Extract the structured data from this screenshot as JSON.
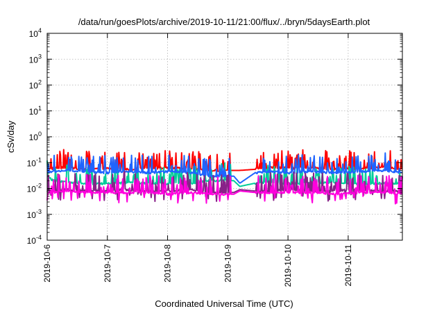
{
  "chart_data": {
    "type": "line",
    "title": "/data/run/goesPlots/archive/2019-10-11/21:00/flux/../bryn/5daysEarth.plot",
    "xlabel": "Coordinated Universal Time (UTC)",
    "ylabel": "cSv/day",
    "yscale": "log",
    "ylim": [
      0.0001,
      10000
    ],
    "xlim": [
      0,
      5.9
    ],
    "grid": true,
    "legend": "none",
    "x_tick_labels": [
      "2019-10-6",
      "2019-10-7",
      "2019-10-8",
      "2019-10-9",
      "2019-10-10",
      "2019-10-11"
    ],
    "y_ticks": [
      {
        "base": "10",
        "exp": "-4"
      },
      {
        "base": "10",
        "exp": "-3"
      },
      {
        "base": "10",
        "exp": "-2"
      },
      {
        "base": "10",
        "exp": "-1"
      },
      {
        "base": "10",
        "exp": "0"
      },
      {
        "base": "10",
        "exp": "1"
      },
      {
        "base": "10",
        "exp": "2"
      },
      {
        "base": "10",
        "exp": "3"
      },
      {
        "base": "10",
        "exp": "4"
      }
    ],
    "series": [
      {
        "color": "#ff0000",
        "x": [
          0,
          0.1,
          0.3,
          0.6,
          1.0,
          1.3,
          1.7,
          2.0,
          2.4,
          2.7,
          3.1,
          3.2,
          3.45,
          3.7,
          4.0,
          4.4,
          4.8,
          5.2,
          5.6,
          5.9
        ],
        "y": [
          0.055,
          0.06,
          0.065,
          0.058,
          0.06,
          0.055,
          0.06,
          0.062,
          0.058,
          0.05,
          0.05,
          0.05,
          0.055,
          0.065,
          0.06,
          0.065,
          0.055,
          0.06,
          0.065,
          0.055
        ]
      },
      {
        "color": "#00cc99",
        "x": [
          0,
          0.1,
          0.3,
          0.6,
          1.0,
          1.3,
          1.7,
          2.0,
          2.4,
          2.7,
          3.1,
          3.2,
          3.45,
          3.7,
          4.0,
          4.4,
          4.8,
          5.2,
          5.6,
          5.9
        ],
        "y": [
          0.03,
          0.02,
          0.018,
          0.016,
          0.015,
          0.017,
          0.016,
          0.015,
          0.016,
          0.02,
          0.02,
          0.012,
          0.016,
          0.017,
          0.015,
          0.016,
          0.017,
          0.015,
          0.016,
          0.015
        ]
      },
      {
        "color": "#1e64ff",
        "x": [
          0,
          0.1,
          0.3,
          0.6,
          1.0,
          1.3,
          1.7,
          2.0,
          2.4,
          2.7,
          3.1,
          3.2,
          3.45,
          3.7,
          4.0,
          4.4,
          4.8,
          5.2,
          5.6,
          5.9
        ],
        "y": [
          0.04,
          0.045,
          0.05,
          0.045,
          0.04,
          0.045,
          0.04,
          0.045,
          0.04,
          0.03,
          0.03,
          0.016,
          0.04,
          0.045,
          0.04,
          0.045,
          0.04,
          0.045,
          0.05,
          0.04
        ]
      },
      {
        "color": "#882288",
        "x": [
          0,
          0.1,
          0.3,
          0.6,
          1.0,
          1.3,
          1.7,
          2.0,
          2.4,
          2.7,
          3.1,
          3.2,
          3.45,
          3.7,
          4.0,
          4.4,
          4.8,
          5.2,
          5.6,
          5.9
        ],
        "y": [
          0.008,
          0.008,
          0.009,
          0.008,
          0.008,
          0.009,
          0.008,
          0.008,
          0.009,
          0.007,
          0.007,
          0.009,
          0.008,
          0.008,
          0.009,
          0.008,
          0.008,
          0.009,
          0.008,
          0.008
        ]
      },
      {
        "color": "#ff00dd",
        "x": [
          0,
          0.1,
          0.3,
          0.6,
          1.0,
          1.3,
          1.7,
          2.0,
          2.4,
          2.7,
          3.1,
          3.2,
          3.45,
          3.7,
          4.0,
          4.4,
          4.8,
          5.2,
          5.6,
          5.9
        ],
        "y": [
          0.007,
          0.007,
          0.008,
          0.007,
          0.007,
          0.007,
          0.007,
          0.006,
          0.007,
          0.006,
          0.006,
          0.008,
          0.007,
          0.007,
          0.007,
          0.007,
          0.006,
          0.007,
          0.007,
          0.006
        ]
      }
    ]
  }
}
